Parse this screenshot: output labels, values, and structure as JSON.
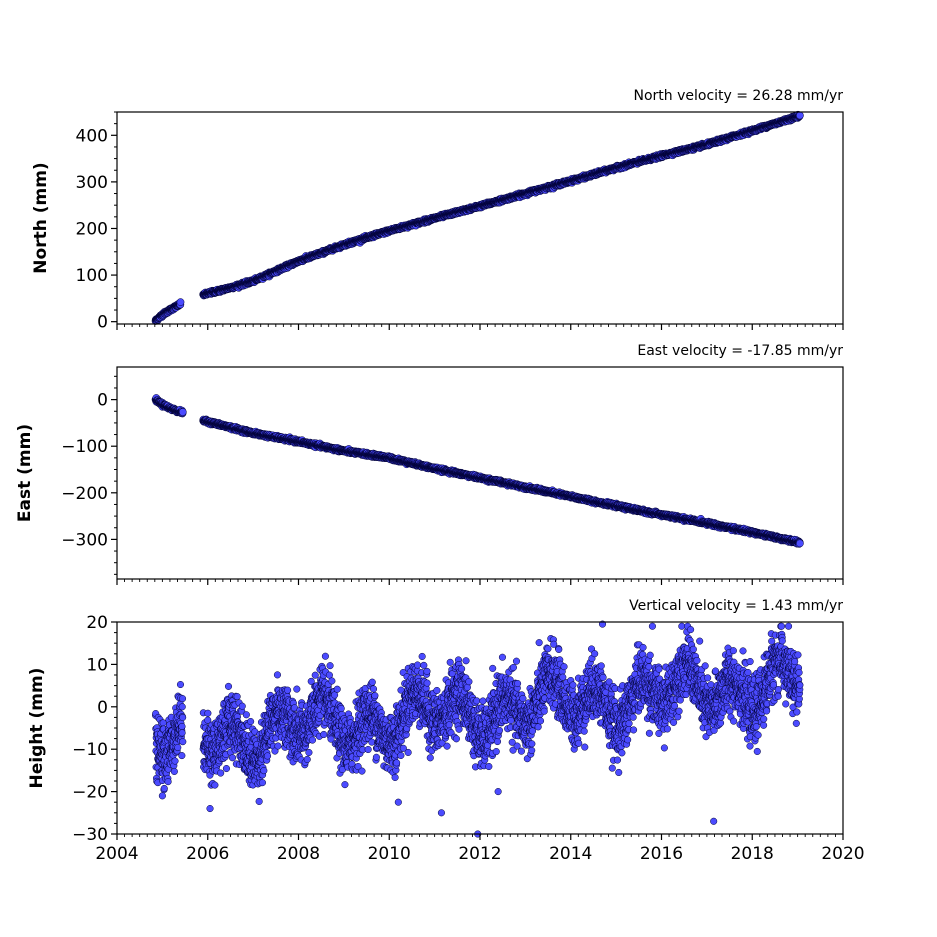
{
  "chart_data": [
    {
      "type": "scatter",
      "title": "North velocity = 26.28 mm/yr",
      "xlabel": "",
      "ylabel": "North (mm)",
      "xlim": [
        2004,
        2020
      ],
      "ylim": [
        -5,
        450
      ],
      "yticks": [
        0,
        100,
        200,
        300,
        400
      ],
      "ytick_labels": [
        "0",
        "100",
        "200",
        "300",
        "400"
      ],
      "grid": false,
      "marker_fill": "#4b4bff",
      "marker_edge": "#000033",
      "segments": [
        {
          "x": [
            2004.85,
            2005.0,
            2005.2,
            2005.4
          ],
          "y": [
            2,
            15,
            27,
            38
          ]
        },
        {
          "x": [
            2005.9,
            2006.5,
            2007.0,
            2008.0,
            2009.0,
            2010.0,
            2011.0,
            2012.0,
            2013.0,
            2014.0,
            2015.0,
            2016.0,
            2017.0,
            2018.0,
            2019.05
          ],
          "y": [
            58,
            73,
            87,
            130,
            165,
            195,
            222,
            248,
            275,
            302,
            330,
            356,
            380,
            410,
            442
          ]
        }
      ]
    },
    {
      "type": "scatter",
      "title": "East velocity = -17.85 mm/yr",
      "xlabel": "",
      "ylabel": "East (mm)",
      "xlim": [
        2004,
        2020
      ],
      "ylim": [
        -385,
        70
      ],
      "yticks": [
        0,
        -100,
        -200,
        -300
      ],
      "ytick_labels": [
        "0",
        "−100",
        "−200",
        "−300"
      ],
      "grid": false,
      "marker_fill": "#4b4bff",
      "marker_edge": "#000033",
      "segments": [
        {
          "x": [
            2004.85,
            2005.0,
            2005.2,
            2005.45
          ],
          "y": [
            0,
            -10,
            -20,
            -28
          ]
        },
        {
          "x": [
            2005.9,
            2007.0,
            2008.0,
            2009.0,
            2010.0,
            2011.0,
            2012.0,
            2013.0,
            2014.0,
            2015.0,
            2016.0,
            2017.0,
            2018.0,
            2019.05
          ],
          "y": [
            -45,
            -72,
            -90,
            -110,
            -125,
            -148,
            -168,
            -188,
            -208,
            -228,
            -247,
            -265,
            -285,
            -307
          ]
        }
      ]
    },
    {
      "type": "scatter",
      "title": "Vertical velocity = 1.43 mm/yr",
      "xlabel": "",
      "ylabel": "Height (mm)",
      "xlim": [
        2004,
        2020
      ],
      "ylim": [
        -30,
        20
      ],
      "yticks": [
        20,
        10,
        0,
        -10,
        -20,
        -30
      ],
      "ytick_labels": [
        "20",
        "10",
        "0",
        "−10",
        "−20",
        "−30"
      ],
      "xticks": [
        2004,
        2006,
        2008,
        2010,
        2012,
        2014,
        2016,
        2018,
        2020
      ],
      "xtick_labels": [
        "2004",
        "2006",
        "2008",
        "2010",
        "2012",
        "2014",
        "2016",
        "2018",
        "2020"
      ],
      "grid": false,
      "marker_fill": "#4b4bff",
      "marker_edge": "#000033",
      "segments": [
        {
          "x": [
            2004.85,
            2005.45
          ],
          "trend": [
            -8,
            -8
          ]
        },
        {
          "x": [
            2005.9,
            2019.05
          ],
          "trend": [
            -7,
            6
          ]
        }
      ],
      "outliers": [
        {
          "x": 2005.0,
          "y": -21
        },
        {
          "x": 2006.05,
          "y": -24
        },
        {
          "x": 2010.2,
          "y": -22.5
        },
        {
          "x": 2011.15,
          "y": -25
        },
        {
          "x": 2011.95,
          "y": -30
        },
        {
          "x": 2012.4,
          "y": -20
        },
        {
          "x": 2014.7,
          "y": 19.5
        },
        {
          "x": 2015.8,
          "y": 19
        },
        {
          "x": 2017.15,
          "y": -27
        },
        {
          "x": 2018.8,
          "y": 19
        }
      ]
    }
  ]
}
